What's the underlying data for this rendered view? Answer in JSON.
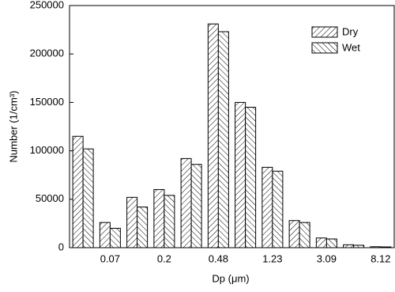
{
  "chart_data": {
    "type": "bar",
    "categories": [
      null,
      "0.07",
      null,
      "0.2",
      null,
      "0.48",
      null,
      "1.23",
      null,
      "3.09",
      null,
      "8.12"
    ],
    "series": [
      {
        "name": "Dry",
        "color": "#000000",
        "hatch": "/",
        "values": [
          115000,
          26000,
          52000,
          60000,
          92000,
          231000,
          150000,
          83000,
          28000,
          10000,
          3000,
          1000
        ]
      },
      {
        "name": "Wet",
        "color": "#000000",
        "hatch": "\\",
        "values": [
          102000,
          20000,
          42000,
          54000,
          86000,
          223000,
          145000,
          79000,
          26000,
          9000,
          2500,
          800
        ]
      }
    ],
    "ylim": [
      0,
      250000
    ],
    "yticks": [
      0,
      50000,
      100000,
      150000,
      200000,
      250000
    ],
    "xlabel": "Dp (μm)",
    "ylabel": "Number (1/cm³)",
    "legend": "upper right"
  }
}
